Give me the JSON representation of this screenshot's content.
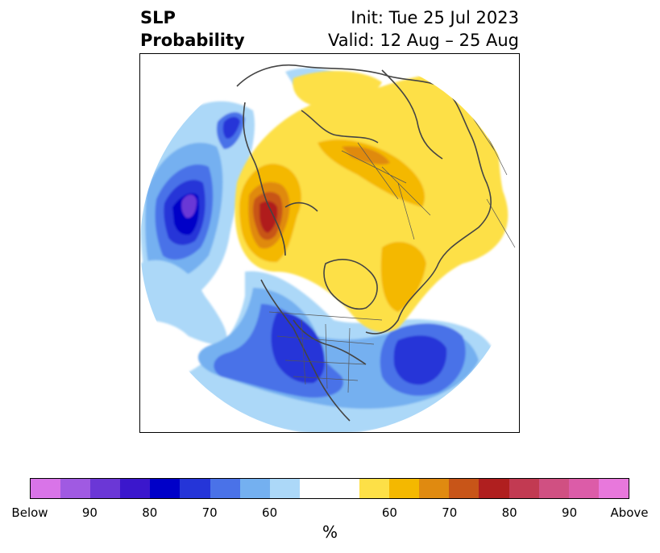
{
  "header": {
    "title_line1": "SLP",
    "title_line2": "Probability",
    "init_text": "Init: Tue 25 Jul 2023",
    "valid_text": "Valid: 12 Aug – 25 Aug"
  },
  "colorbar": {
    "colors": [
      "#d974e8",
      "#a05ae2",
      "#6b37d6",
      "#3b17cc",
      "#0000c8",
      "#2535d8",
      "#4a72e8",
      "#74b0f0",
      "#acd8f8",
      "#ffffff",
      "#fde047",
      "#f4b800",
      "#e08a10",
      "#c85518",
      "#b01f1f",
      "#c23a52",
      "#d05082",
      "#dc5ca8",
      "#e878dc"
    ],
    "tick_labels": [
      "Below",
      "90",
      "80",
      "70",
      "60",
      "60",
      "70",
      "80",
      "90",
      "Above"
    ],
    "unit": "%"
  }
}
